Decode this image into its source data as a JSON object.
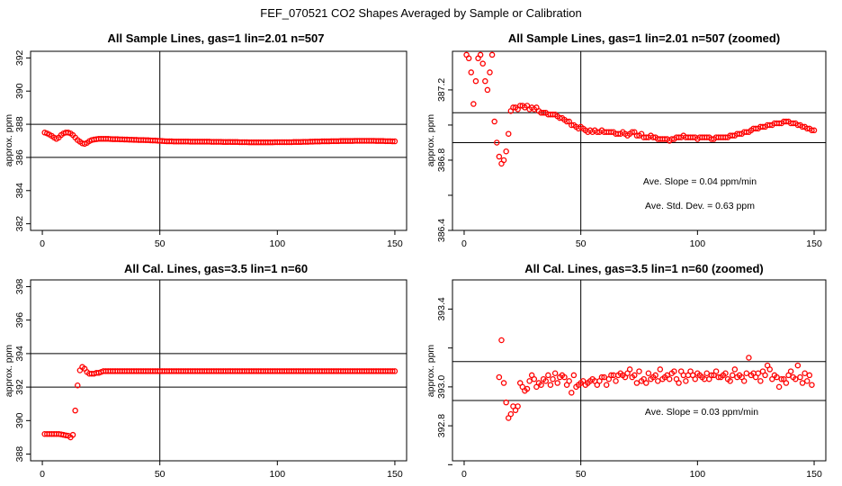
{
  "title": "FEF_070521  CO2 Shapes Averaged by Sample or Calibration",
  "chart_data": [
    {
      "type": "scatter",
      "title": "All Sample Lines, gas=1 lin=2.01 n=507",
      "ylabel": "approx. ppm",
      "xlim": [
        -5,
        155
      ],
      "ylim": [
        381.6,
        392.4
      ],
      "xticks": [
        0,
        50,
        100,
        150
      ],
      "yticks": [
        382,
        384,
        386,
        388,
        390,
        392
      ],
      "xticklabels": [
        "0",
        "50",
        "100",
        "150"
      ],
      "yticklabels": [
        "382",
        "384",
        "386",
        "388",
        "390",
        "392"
      ],
      "vline": 50,
      "hlines": [
        386,
        388
      ],
      "color": "#ff0000",
      "annotations": [],
      "x_start": 1,
      "values": [
        387.5,
        387.45,
        387.38,
        387.3,
        387.2,
        387.12,
        387.2,
        387.35,
        387.45,
        387.5,
        387.5,
        387.45,
        387.35,
        387.2,
        387.05,
        386.95,
        386.85,
        386.82,
        386.88,
        386.98,
        387.05,
        387.08,
        387.1,
        387.12,
        387.12,
        387.12,
        387.12,
        387.12,
        387.11,
        387.1,
        387.1,
        387.1,
        387.09,
        387.09,
        387.08,
        387.08,
        387.07,
        387.07,
        387.06,
        387.06,
        387.05,
        387.05,
        387.05,
        387.04,
        387.04,
        387.03,
        387.02,
        387.02,
        387.01,
        387.0,
        386.99,
        386.98,
        386.97,
        386.97,
        386.97,
        386.96,
        386.96,
        386.96,
        386.96,
        386.96,
        386.96,
        386.96,
        386.95,
        386.95,
        386.95,
        386.95,
        386.95,
        386.95,
        386.95,
        386.95,
        386.95,
        386.94,
        386.94,
        386.94,
        386.94,
        386.94,
        386.93,
        386.93,
        386.93,
        386.93,
        386.93,
        386.93,
        386.93,
        386.92,
        386.92,
        386.92,
        386.92,
        386.91,
        386.91,
        386.91,
        386.91,
        386.91,
        386.91,
        386.91,
        386.91,
        386.91,
        386.91,
        386.91,
        386.92,
        386.92,
        386.92,
        386.92,
        386.92,
        386.92,
        386.92,
        386.92,
        386.93,
        386.93,
        386.93,
        386.93,
        386.94,
        386.94,
        386.94,
        386.95,
        386.95,
        386.96,
        386.96,
        386.96,
        386.97,
        386.97,
        386.97,
        386.97,
        386.98,
        386.98,
        386.98,
        386.98,
        386.99,
        386.99,
        386.99,
        386.99,
        386.99,
        386.99,
        387.0,
        387.0,
        387.0,
        387.0,
        387.0,
        387.0,
        387.0,
        387.0,
        387.0,
        386.99,
        386.99,
        386.99,
        386.99,
        386.98,
        386.98,
        386.98,
        386.97,
        386.97
      ]
    },
    {
      "type": "scatter",
      "title": "All Sample Lines, gas=1 lin=2.01 n=507 (zoomed)",
      "ylabel": "approx. ppm",
      "xlim": [
        -5,
        155
      ],
      "ylim": [
        386.4,
        387.42
      ],
      "xticks": [
        0,
        50,
        100,
        150
      ],
      "yticks": [
        386.4,
        386.6,
        386.8,
        387.0,
        387.2
      ],
      "xticklabels": [
        "0",
        "50",
        "100",
        "150"
      ],
      "yticklabels": [
        "386.4",
        "",
        "386.8",
        "",
        "387.2"
      ],
      "vline": 50,
      "hlines": [
        386.9,
        387.07
      ],
      "color": "#ff0000",
      "annotations": [
        "Ave. Slope =  0.04  ppm/min",
        "Ave. Std. Dev. =  0.63  ppm"
      ],
      "x_start": 1,
      "values": [
        387.4,
        387.38,
        387.3,
        387.12,
        387.25,
        387.38,
        387.4,
        387.35,
        387.25,
        387.2,
        387.3,
        387.4,
        387.02,
        386.9,
        386.82,
        386.78,
        386.8,
        386.85,
        386.95,
        387.08,
        387.1,
        387.1,
        387.09,
        387.11,
        387.11,
        387.1,
        387.11,
        387.09,
        387.1,
        387.09,
        387.1,
        387.08,
        387.07,
        387.07,
        387.07,
        387.06,
        387.06,
        387.06,
        387.06,
        387.05,
        387.04,
        387.04,
        387.03,
        387.02,
        387.02,
        387.0,
        387.0,
        386.99,
        386.98,
        386.99,
        386.98,
        386.97,
        386.96,
        386.97,
        386.96,
        386.97,
        386.96,
        386.96,
        386.97,
        386.96,
        386.96,
        386.96,
        386.96,
        386.96,
        386.95,
        386.95,
        386.95,
        386.96,
        386.95,
        386.94,
        386.95,
        386.96,
        386.96,
        386.94,
        386.94,
        386.95,
        386.93,
        386.93,
        386.93,
        386.94,
        386.93,
        386.93,
        386.92,
        386.92,
        386.92,
        386.92,
        386.92,
        386.91,
        386.92,
        386.92,
        386.93,
        386.93,
        386.93,
        386.94,
        386.93,
        386.93,
        386.93,
        386.93,
        386.93,
        386.92,
        386.93,
        386.93,
        386.93,
        386.93,
        386.93,
        386.92,
        386.92,
        386.93,
        386.93,
        386.93,
        386.93,
        386.93,
        386.93,
        386.94,
        386.94,
        386.94,
        386.95,
        386.95,
        386.95,
        386.96,
        386.96,
        386.96,
        386.97,
        386.98,
        386.98,
        386.98,
        386.99,
        386.99,
        386.99,
        387.0,
        387.0,
        387.0,
        387.01,
        387.01,
        387.01,
        387.01,
        387.02,
        387.02,
        387.02,
        387.01,
        387.01,
        387.01,
        387.0,
        387.0,
        386.99,
        386.99,
        386.98,
        386.98,
        386.97,
        386.97
      ]
    },
    {
      "type": "scatter",
      "title": "All Cal. Lines, gas=3.5 lin=1 n=60",
      "ylabel": "approx. ppm",
      "xlim": [
        -5,
        155
      ],
      "ylim": [
        387.6,
        398.4
      ],
      "xticks": [
        0,
        50,
        100,
        150
      ],
      "yticks": [
        388,
        390,
        392,
        394,
        396,
        398
      ],
      "xticklabels": [
        "0",
        "50",
        "100",
        "150"
      ],
      "yticklabels": [
        "388",
        "390",
        "392",
        "394",
        "396",
        "398"
      ],
      "vline": 50,
      "hlines": [
        392,
        394
      ],
      "color": "#ff0000",
      "annotations": [],
      "x_start": 1,
      "values": [
        389.2,
        389.2,
        389.2,
        389.2,
        389.2,
        389.2,
        389.2,
        389.18,
        389.15,
        389.12,
        389.1,
        389.0,
        389.15,
        390.6,
        392.1,
        393.0,
        393.2,
        393.1,
        392.9,
        392.8,
        392.8,
        392.8,
        392.85,
        392.85,
        392.9,
        392.95,
        392.95,
        392.95,
        392.95,
        392.95,
        392.95,
        392.95,
        392.95,
        392.95,
        392.95,
        392.95,
        392.95,
        392.95,
        392.95,
        392.95,
        392.95,
        392.95,
        392.95,
        392.95,
        392.95,
        392.95,
        392.95,
        392.95,
        392.95,
        392.95,
        392.95,
        392.95,
        392.95,
        392.95,
        392.95,
        392.95,
        392.95,
        392.95,
        392.95,
        392.95,
        392.95,
        392.95,
        392.95,
        392.95,
        392.95,
        392.95,
        392.95,
        392.95,
        392.95,
        392.95,
        392.95,
        392.95,
        392.95,
        392.95,
        392.95,
        392.95,
        392.95,
        392.95,
        392.95,
        392.95,
        392.95,
        392.95,
        392.95,
        392.95,
        392.95,
        392.95,
        392.95,
        392.95,
        392.95,
        392.95,
        392.95,
        392.95,
        392.95,
        392.95,
        392.95,
        392.95,
        392.95,
        392.95,
        392.95,
        392.95,
        392.95,
        392.95,
        392.95,
        392.95,
        392.95,
        392.95,
        392.95,
        392.95,
        392.95,
        392.95,
        392.95,
        392.95,
        392.95,
        392.95,
        392.95,
        392.95,
        392.95,
        392.95,
        392.95,
        392.95,
        392.95,
        392.95,
        392.95,
        392.95,
        392.95,
        392.95,
        392.95,
        392.95,
        392.95,
        392.95,
        392.95,
        392.95,
        392.95,
        392.95,
        392.95,
        392.95,
        392.95,
        392.95,
        392.95,
        392.95,
        392.95,
        392.95,
        392.95,
        392.95,
        392.95,
        392.95,
        392.95,
        392.95,
        392.95,
        392.95
      ]
    },
    {
      "type": "scatter",
      "title": "All Cal. Lines, gas=3.5 lin=1 n=60 (zoomed)",
      "ylabel": "approx. ppm",
      "xlim": [
        -5,
        155
      ],
      "ylim": [
        392.62,
        393.55
      ],
      "xticks": [
        0,
        50,
        100,
        150
      ],
      "yticks": [
        392.6,
        392.8,
        393.0,
        393.2,
        393.4
      ],
      "xticklabels": [
        "0",
        "50",
        "100",
        "150"
      ],
      "yticklabels": [
        "",
        "392.8",
        "393.0",
        "",
        "393.4"
      ],
      "vline": 50,
      "hlines": [
        392.93,
        393.13
      ],
      "color": "#ff0000",
      "annotations": [
        "Ave. Slope =  0.03  ppm/min"
      ],
      "x_start": 15,
      "values": [
        393.05,
        393.24,
        393.02,
        392.92,
        392.84,
        392.86,
        392.9,
        392.88,
        392.9,
        393.02,
        393.0,
        392.98,
        392.99,
        393.03,
        393.06,
        393.04,
        393.0,
        393.02,
        393.01,
        393.04,
        393.03,
        393.06,
        393.01,
        393.04,
        393.07,
        393.02,
        393.05,
        393.06,
        393.05,
        393.01,
        393.03,
        392.97,
        393.06,
        393.0,
        393.01,
        393.02,
        393.03,
        393.01,
        393.02,
        393.03,
        393.04,
        393.03,
        393.01,
        393.03,
        393.05,
        393.05,
        393.01,
        393.04,
        393.06,
        393.06,
        393.03,
        393.06,
        393.07,
        393.06,
        393.05,
        393.07,
        393.09,
        393.05,
        393.06,
        393.02,
        393.08,
        393.03,
        393.04,
        393.02,
        393.07,
        393.04,
        393.05,
        393.06,
        393.03,
        393.09,
        393.04,
        393.05,
        393.06,
        393.04,
        393.07,
        393.08,
        393.04,
        393.02,
        393.08,
        393.06,
        393.03,
        393.06,
        393.08,
        393.06,
        393.04,
        393.07,
        393.06,
        393.05,
        393.04,
        393.07,
        393.04,
        393.06,
        393.06,
        393.08,
        393.05,
        393.05,
        393.06,
        393.07,
        393.04,
        393.03,
        393.06,
        393.09,
        393.05,
        393.06,
        393.05,
        393.03,
        393.07,
        393.15,
        393.06,
        393.07,
        393.05,
        393.07,
        393.03,
        393.08,
        393.06,
        393.11,
        393.09,
        393.04,
        393.06,
        393.05,
        393.0,
        393.04,
        393.04,
        393.02,
        393.06,
        393.08,
        393.05,
        393.04,
        393.11,
        393.05,
        393.02,
        393.07,
        393.03,
        393.06,
        393.01
      ]
    }
  ]
}
